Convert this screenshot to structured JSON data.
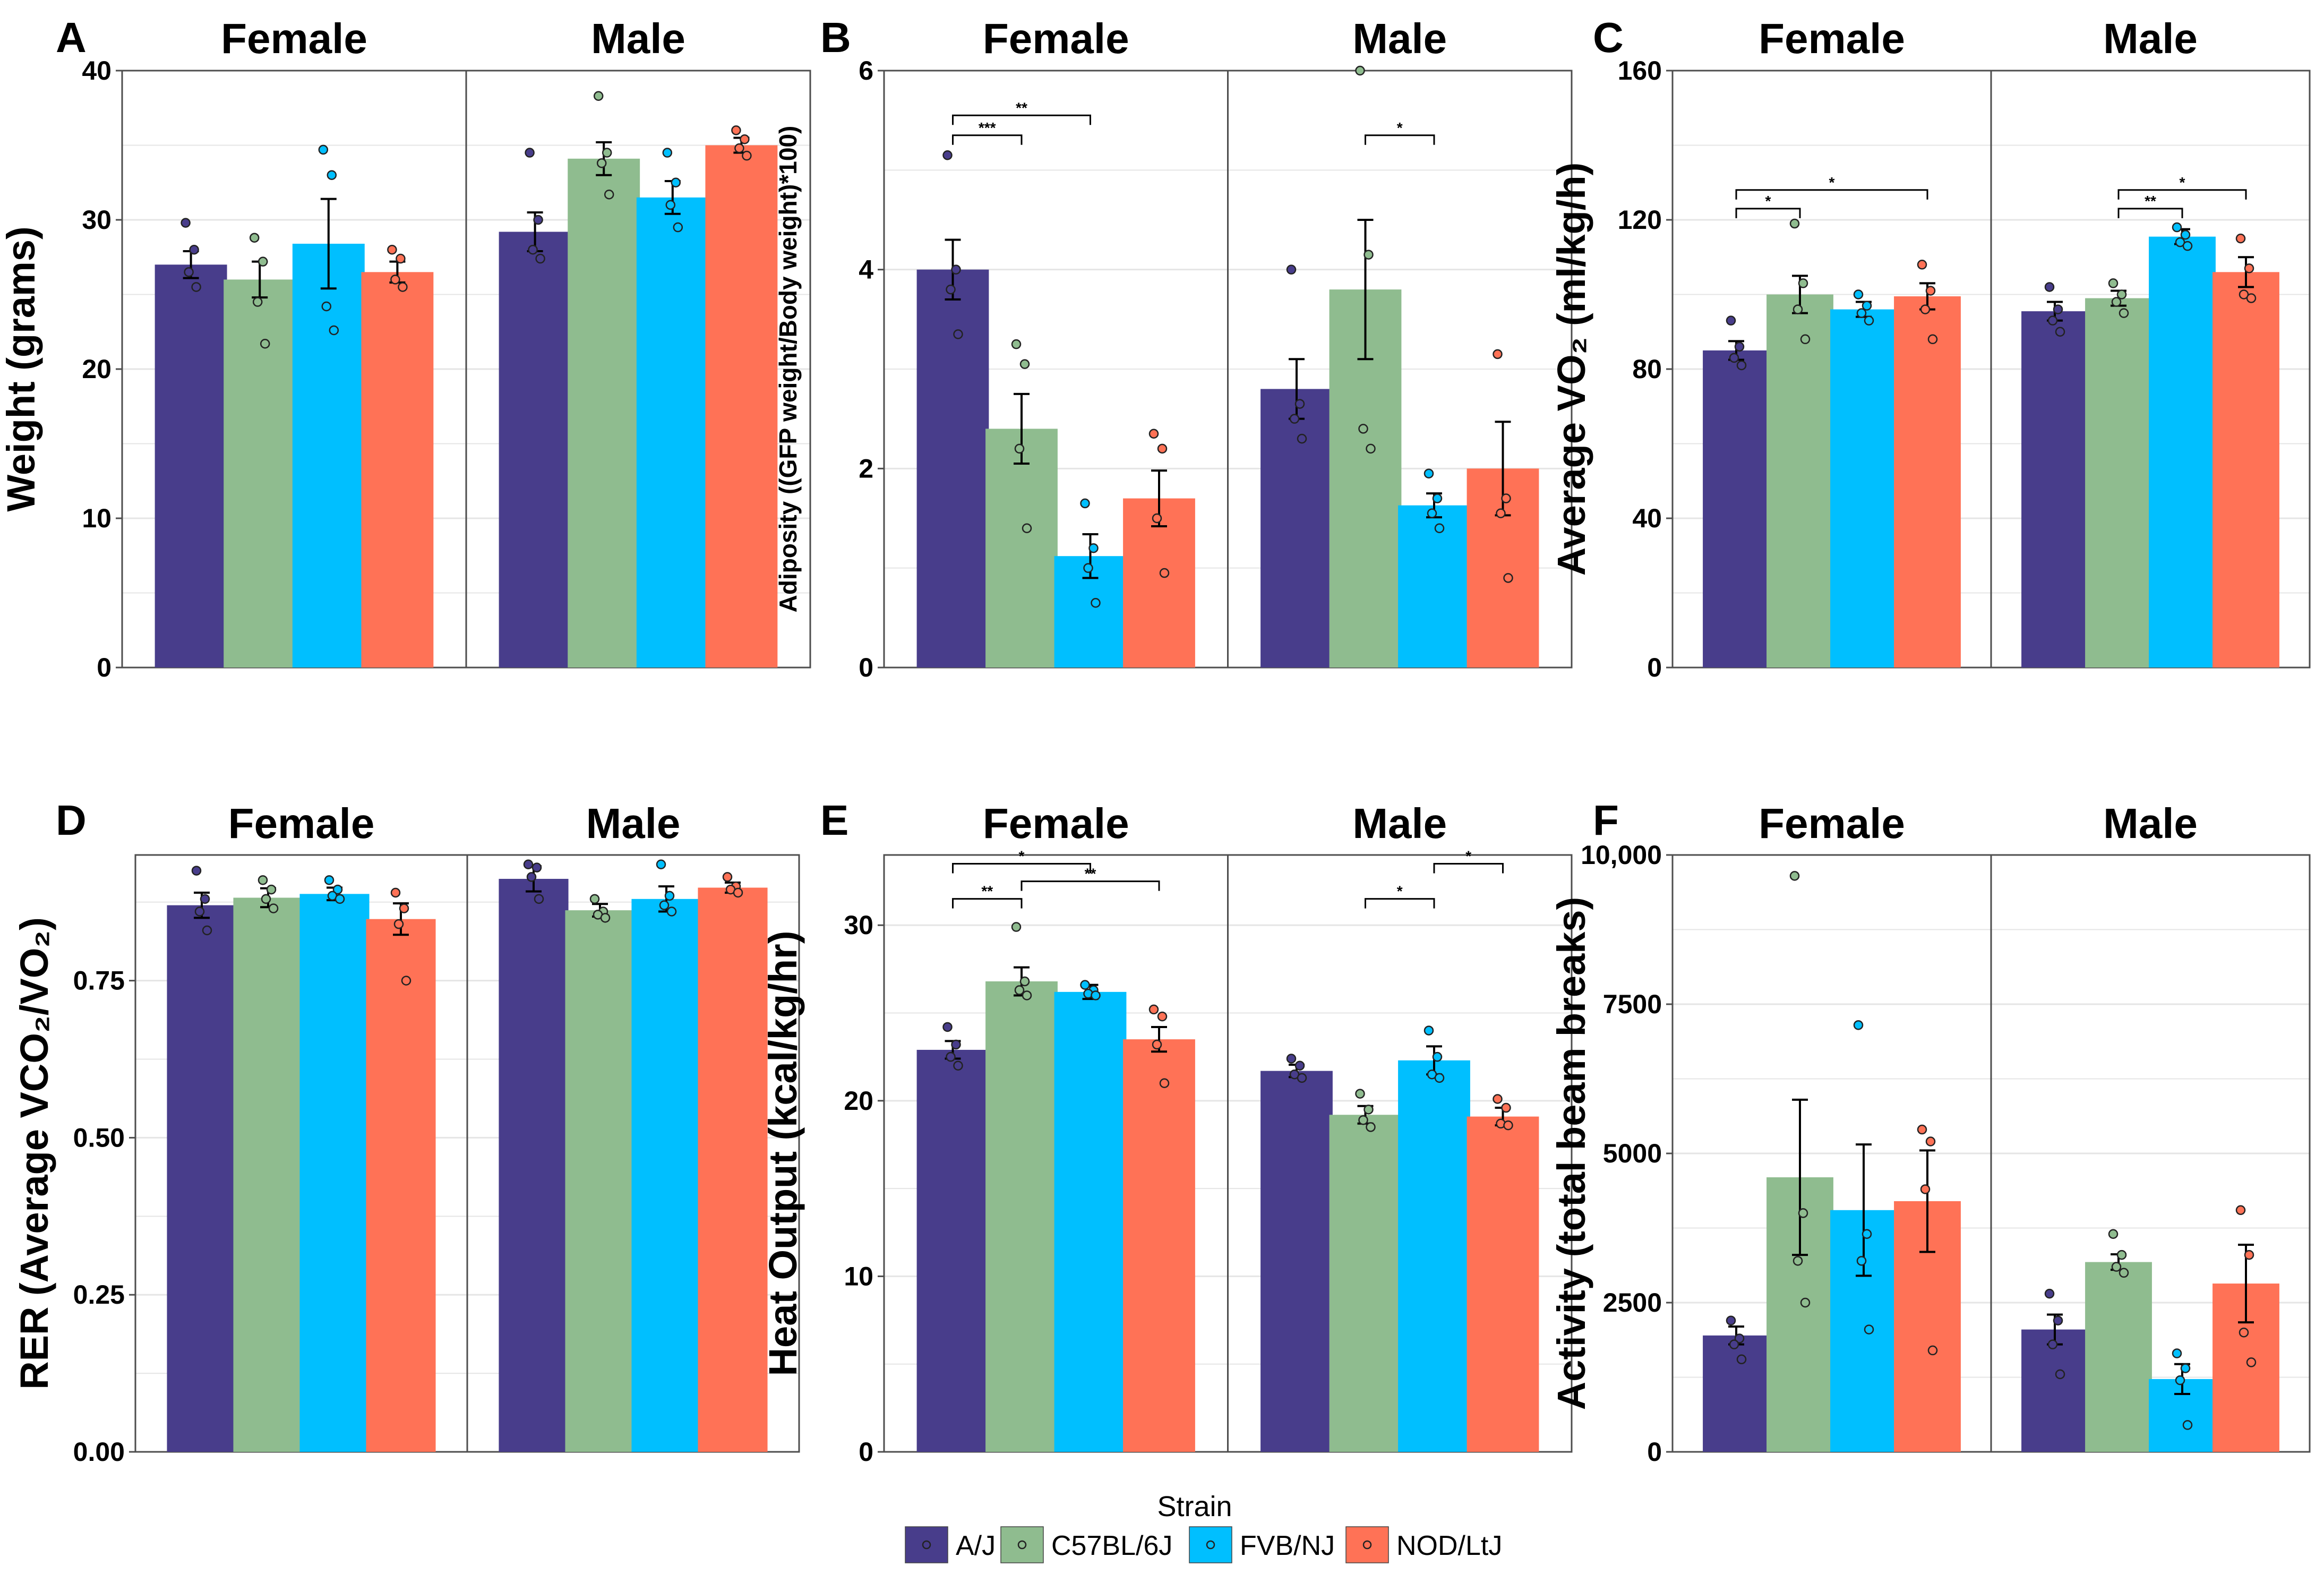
{
  "chart_data": [
    {
      "panel": "A",
      "type": "bar",
      "ylabel": "Weight (grams)",
      "ylim": [
        0,
        40
      ],
      "yticks": [
        0,
        10,
        20,
        30,
        40
      ],
      "facets": [
        {
          "label": "Female",
          "means": [
            27.0,
            26.0,
            28.4,
            26.5
          ],
          "sems": [
            0.9,
            1.2,
            3.0,
            0.7
          ],
          "points": [
            [
              29.8,
              28.0,
              26.5,
              25.5
            ],
            [
              28.8,
              27.2,
              24.5,
              21.7
            ],
            [
              34.7,
              33.0,
              24.2,
              22.6
            ],
            [
              28.0,
              27.4,
              26.0,
              25.5
            ]
          ]
        },
        {
          "label": "Male",
          "means": [
            29.2,
            34.1,
            31.5,
            35.0
          ],
          "sems": [
            1.3,
            1.1,
            1.1,
            0.5
          ],
          "points": [
            [
              34.5,
              30.0,
              28.0,
              27.4
            ],
            [
              38.3,
              34.5,
              33.8,
              31.7
            ],
            [
              34.5,
              32.5,
              31.0,
              29.5
            ],
            [
              36.0,
              35.4,
              34.8,
              34.3
            ]
          ]
        }
      ],
      "sig": []
    },
    {
      "panel": "B",
      "type": "bar",
      "ylabel": "Adiposity ((GFP weight/Body weight)*100)",
      "ylim": [
        0,
        6
      ],
      "yticks": [
        0,
        2,
        4,
        6
      ],
      "facets": [
        {
          "label": "Female",
          "means": [
            4.0,
            2.4,
            1.12,
            1.7
          ],
          "sems": [
            0.3,
            0.35,
            0.22,
            0.28
          ],
          "points": [
            [
              5.15,
              4.0,
              3.8,
              3.35
            ],
            [
              3.25,
              3.05,
              2.2,
              1.4
            ],
            [
              1.65,
              1.2,
              1.0,
              0.65
            ],
            [
              2.35,
              2.2,
              1.5,
              0.95
            ]
          ]
        },
        {
          "label": "Male",
          "means": [
            2.8,
            3.8,
            1.63,
            2.0
          ],
          "sems": [
            0.3,
            0.7,
            0.12,
            0.47
          ],
          "points": [
            [
              4.0,
              2.65,
              2.5,
              2.3
            ],
            [
              6.0,
              4.15,
              2.4,
              2.2
            ],
            [
              1.95,
              1.7,
              1.55,
              1.4
            ],
            [
              3.15,
              1.7,
              1.55,
              0.9
            ]
          ]
        }
      ],
      "sig": [
        {
          "facet": 0,
          "from": 0,
          "to": 1,
          "label": "***",
          "y": 5.35
        },
        {
          "facet": 0,
          "from": 0,
          "to": 2,
          "label": "**",
          "y": 5.55
        },
        {
          "facet": 1,
          "from": 1,
          "to": 2,
          "label": "*",
          "y": 5.35
        }
      ]
    },
    {
      "panel": "C",
      "type": "bar",
      "ylabel": "Average VO₂ (ml/kg/h)",
      "ylim": [
        0,
        160
      ],
      "yticks": [
        0,
        40,
        80,
        120,
        160
      ],
      "facets": [
        {
          "label": "Female",
          "means": [
            85,
            100,
            96,
            99.5
          ],
          "sems": [
            2.5,
            5.0,
            2.0,
            3.5
          ],
          "points": [
            [
              93,
              86,
              83,
              81
            ],
            [
              119,
              103,
              96,
              88
            ],
            [
              100,
              97,
              95,
              93
            ],
            [
              108,
              101,
              96,
              88
            ]
          ]
        },
        {
          "label": "Male",
          "means": [
            95.5,
            99,
            115.5,
            106
          ],
          "sems": [
            2.5,
            2.0,
            2.0,
            4.0
          ],
          "points": [
            [
              102,
              96,
              93,
              90
            ],
            [
              103,
              100,
              98,
              95
            ],
            [
              118,
              116,
              114,
              113
            ],
            [
              115,
              107,
              100,
              99
            ]
          ]
        }
      ],
      "sig": [
        {
          "facet": 0,
          "from": 0,
          "to": 1,
          "label": "*",
          "y": 123
        },
        {
          "facet": 0,
          "from": 0,
          "to": 3,
          "label": "*",
          "y": 128
        },
        {
          "facet": 1,
          "from": 1,
          "to": 2,
          "label": "**",
          "y": 123
        },
        {
          "facet": 1,
          "from": 1,
          "to": 3,
          "label": "*",
          "y": 128
        }
      ]
    },
    {
      "panel": "D",
      "type": "bar",
      "ylabel": "RER (Average VCO₂/VO₂)",
      "ylim": [
        0,
        0.95
      ],
      "yticks": [
        0.0,
        0.25,
        0.5,
        0.75
      ],
      "ytick_labels": [
        "0.00",
        "0.25",
        "0.50",
        "0.75"
      ],
      "facets": [
        {
          "label": "Female",
          "means": [
            0.87,
            0.882,
            0.888,
            0.848
          ],
          "sems": [
            0.02,
            0.015,
            0.01,
            0.025
          ],
          "points": [
            [
              0.925,
              0.88,
              0.86,
              0.83
            ],
            [
              0.91,
              0.895,
              0.88,
              0.865
            ],
            [
              0.91,
              0.895,
              0.885,
              0.88
            ],
            [
              0.89,
              0.865,
              0.84,
              0.75
            ]
          ]
        },
        {
          "label": "Male",
          "means": [
            0.912,
            0.862,
            0.88,
            0.898
          ],
          "sems": [
            0.02,
            0.01,
            0.02,
            0.008
          ],
          "points": [
            [
              0.935,
              0.93,
              0.915,
              0.88
            ],
            [
              0.88,
              0.86,
              0.855,
              0.85
            ],
            [
              0.935,
              0.885,
              0.87,
              0.86
            ],
            [
              0.915,
              0.9,
              0.895,
              0.89
            ]
          ]
        }
      ],
      "sig": []
    },
    {
      "panel": "E",
      "type": "bar",
      "ylabel": "Heat Output (kcal/kg/hr)",
      "ylim": [
        0,
        34
      ],
      "yticks": [
        0,
        10,
        20,
        30
      ],
      "facets": [
        {
          "label": "Female",
          "means": [
            22.9,
            26.8,
            26.2,
            23.5
          ],
          "sems": [
            0.5,
            0.8,
            0.4,
            0.7
          ],
          "points": [
            [
              24.2,
              23.2,
              22.5,
              22.0
            ],
            [
              29.9,
              26.8,
              26.3,
              26.0
            ],
            [
              26.6,
              26.3,
              26.1,
              26.0
            ],
            [
              25.2,
              24.8,
              23.2,
              21.0
            ]
          ]
        },
        {
          "label": "Male",
          "means": [
            21.7,
            19.2,
            22.3,
            19.1
          ],
          "sems": [
            0.35,
            0.5,
            0.8,
            0.5
          ],
          "points": [
            [
              22.4,
              22.0,
              21.5,
              21.3
            ],
            [
              20.4,
              19.5,
              18.9,
              18.5
            ],
            [
              24.0,
              22.5,
              21.5,
              21.3
            ],
            [
              20.1,
              19.6,
              18.7,
              18.6
            ]
          ]
        }
      ],
      "sig": [
        {
          "facet": 0,
          "from": 0,
          "to": 1,
          "label": "**",
          "y": 31.5
        },
        {
          "facet": 0,
          "from": 0,
          "to": 2,
          "label": "*",
          "y": 33.5
        },
        {
          "facet": 0,
          "from": 1,
          "to": 3,
          "label": "**",
          "y": 32.5
        },
        {
          "facet": 1,
          "from": 1,
          "to": 2,
          "label": "*",
          "y": 31.5
        },
        {
          "facet": 1,
          "from": 2,
          "to": 3,
          "label": "*",
          "y": 33.5
        }
      ]
    },
    {
      "panel": "F",
      "type": "bar",
      "ylabel": "Activity (total beam breaks)",
      "ylim": [
        0,
        10000
      ],
      "yticks": [
        0,
        2500,
        5000,
        7500,
        10000
      ],
      "ytick_labels": [
        "0",
        "2500",
        "5000",
        "7500",
        "10,000"
      ],
      "facets": [
        {
          "label": "Female",
          "means": [
            1950,
            4600,
            4050,
            4200
          ],
          "sems": [
            150,
            1300,
            1100,
            850
          ],
          "points": [
            [
              2200,
              1900,
              1800,
              1550
            ],
            [
              9650,
              4000,
              3200,
              2500
            ],
            [
              7150,
              3650,
              3200,
              2050
            ],
            [
              5400,
              5200,
              4400,
              1700
            ]
          ]
        },
        {
          "label": "Male",
          "means": [
            2050,
            3180,
            1220,
            2820
          ],
          "sems": [
            250,
            130,
            250,
            650
          ],
          "points": [
            [
              2650,
              2200,
              1800,
              1300
            ],
            [
              3650,
              3300,
              3100,
              3000
            ],
            [
              1650,
              1400,
              1200,
              450
            ],
            [
              4050,
              3300,
              2000,
              1500
            ]
          ]
        }
      ],
      "sig": []
    }
  ],
  "legend": {
    "title": "Strain",
    "entries": [
      "A/J",
      "C57BL/6J",
      "FVB/NJ",
      "NOD/LtJ"
    ]
  },
  "colors": {
    "strains": [
      "#483d8b",
      "#8fbc8f",
      "#00bfff",
      "#ff7256"
    ],
    "frame": "#4d4d4d",
    "grid": "#e5e5e5"
  }
}
